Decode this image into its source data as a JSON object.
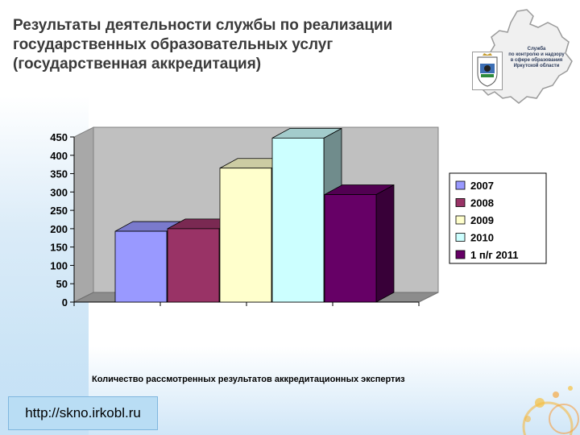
{
  "title": {
    "line1": "Результаты деятельности службы по реализации",
    "line2": "государственных образовательных услуг",
    "line3": "(государственная аккредитация)"
  },
  "logo": {
    "line1": "Служба",
    "line2": "по контролю и надзору",
    "line3": "в сфере образования",
    "line4": "Иркутской области"
  },
  "chart_data": {
    "type": "bar",
    "categories": [
      ""
    ],
    "series": [
      {
        "name": "2007",
        "values": [
          193
        ],
        "color": "#9999ff"
      },
      {
        "name": "2008",
        "values": [
          200
        ],
        "color": "#993366"
      },
      {
        "name": "2009",
        "values": [
          365
        ],
        "color": "#ffffcc"
      },
      {
        "name": "2010",
        "values": [
          447
        ],
        "color": "#ccffff"
      },
      {
        "name": "1 п/г 2011",
        "values": [
          293
        ],
        "color": "#660066"
      }
    ],
    "ylim": [
      0,
      450
    ],
    "yticks": [
      "0",
      "50",
      "100",
      "150",
      "200",
      "250",
      "300",
      "350",
      "400",
      "450"
    ],
    "grid": false,
    "legend": "right",
    "view": "3d"
  },
  "caption": "Количество рассмотренных результатов аккредитационных экспертиз",
  "url": "http://skno.irkobl.ru"
}
